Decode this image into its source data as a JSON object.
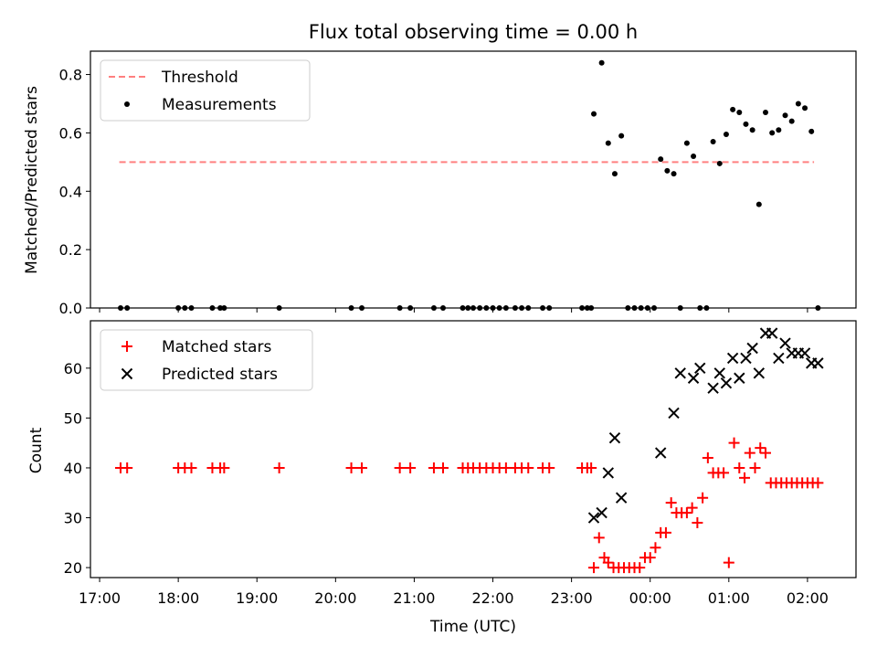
{
  "chart_data": [
    {
      "type": "scatter",
      "title": "Flux total observing time = 0.00 h",
      "xlabel": "",
      "ylabel": "Matched/Predicted stars",
      "xlim": [
        "16:53",
        "02:37"
      ],
      "ylim": [
        0,
        0.88
      ],
      "yticks": [
        "0.0",
        "0.2",
        "0.4",
        "0.6",
        "0.8"
      ],
      "grid": false,
      "legend_position": "top-left",
      "series": [
        {
          "name": "Threshold",
          "style": "dashed-line",
          "color": "#ff8080",
          "x": [
            "17:15",
            "02:05"
          ],
          "y": [
            0.5,
            0.5
          ]
        },
        {
          "name": "Measurements",
          "style": "dot",
          "color": "#000000",
          "x": [
            "17:16",
            "17:21",
            "18:00",
            "18:05",
            "18:10",
            "18:26",
            "18:32",
            "18:35",
            "19:17",
            "20:12",
            "20:20",
            "20:49",
            "20:57",
            "21:15",
            "21:22",
            "21:37",
            "21:41",
            "21:45",
            "21:50",
            "21:55",
            "22:00",
            "22:05",
            "22:10",
            "22:17",
            "22:22",
            "22:27",
            "22:38",
            "22:43",
            "23:08",
            "23:12",
            "23:15",
            "23:17",
            "23:23",
            "23:28",
            "23:33",
            "23:38",
            "23:43",
            "23:48",
            "23:53",
            "23:58",
            "00:03",
            "00:08",
            "00:13",
            "00:18",
            "00:23",
            "00:28",
            "00:33",
            "00:38",
            "00:43",
            "00:48",
            "00:53",
            "00:58",
            "01:03",
            "01:08",
            "01:13",
            "01:18",
            "01:23",
            "01:28",
            "01:33",
            "01:38",
            "01:43",
            "01:48",
            "01:53",
            "01:58",
            "02:03",
            "02:08"
          ],
          "y": [
            0,
            0,
            0,
            0,
            0,
            0,
            0,
            0,
            0,
            0,
            0,
            0,
            0,
            0,
            0,
            0,
            0,
            0,
            0,
            0,
            0,
            0,
            0,
            0,
            0,
            0,
            0,
            0,
            0,
            0,
            0,
            0.665,
            0.84,
            0.565,
            0.46,
            0.59,
            0,
            0,
            0,
            0,
            0,
            0.51,
            0.47,
            0.46,
            0,
            0.565,
            0.52,
            0,
            0,
            0.57,
            0.495,
            0.595,
            0.68,
            0.67,
            0.63,
            0.61,
            0.355,
            0.67,
            0.6,
            0.61,
            0.66,
            0.64,
            0.7,
            0.685,
            0.605,
            0
          ]
        }
      ]
    },
    {
      "type": "scatter",
      "title": "",
      "xlabel": "Time (UTC)",
      "ylabel": "Count",
      "xlim": [
        "16:53",
        "02:37"
      ],
      "ylim": [
        18,
        69.5
      ],
      "yticks": [
        "20",
        "30",
        "40",
        "50",
        "60"
      ],
      "xticks": [
        "17:00",
        "18:00",
        "19:00",
        "20:00",
        "21:00",
        "22:00",
        "23:00",
        "00:00",
        "01:00",
        "02:00"
      ],
      "grid": false,
      "legend_position": "top-left",
      "series": [
        {
          "name": "Matched stars",
          "style": "plus",
          "color": "#ff0000",
          "x": [
            "17:16",
            "17:21",
            "18:00",
            "18:05",
            "18:10",
            "18:26",
            "18:32",
            "18:35",
            "19:17",
            "20:12",
            "20:20",
            "20:49",
            "20:57",
            "21:15",
            "21:22",
            "21:37",
            "21:41",
            "21:45",
            "21:50",
            "21:55",
            "22:00",
            "22:05",
            "22:10",
            "22:17",
            "22:22",
            "22:27",
            "22:38",
            "22:43",
            "23:08",
            "23:12",
            "23:15",
            "23:17",
            "23:21",
            "23:25",
            "23:28",
            "23:32",
            "23:36",
            "23:40",
            "23:44",
            "23:48",
            "23:52",
            "23:56",
            "00:00",
            "00:04",
            "00:08",
            "00:12",
            "00:16",
            "00:20",
            "00:24",
            "00:28",
            "00:32",
            "00:36",
            "00:40",
            "00:44",
            "00:48",
            "00:52",
            "00:56",
            "01:00",
            "01:04",
            "01:08",
            "01:12",
            "01:16",
            "01:20",
            "01:24",
            "01:28",
            "01:32",
            "01:36",
            "01:40",
            "01:44",
            "01:48",
            "01:52",
            "01:56",
            "02:00",
            "02:04",
            "02:08"
          ],
          "y": [
            40,
            40,
            40,
            40,
            40,
            40,
            40,
            40,
            40,
            40,
            40,
            40,
            40,
            40,
            40,
            40,
            40,
            40,
            40,
            40,
            40,
            40,
            40,
            40,
            40,
            40,
            40,
            40,
            40,
            40,
            40,
            20,
            26,
            22,
            21,
            20,
            20,
            20,
            20,
            20,
            20,
            22,
            22,
            24,
            27,
            27,
            33,
            31,
            31,
            31,
            32,
            29,
            34,
            42,
            39,
            39,
            39,
            21,
            45,
            40,
            38,
            43,
            40,
            44,
            43,
            37,
            37,
            37,
            37,
            37,
            37,
            37,
            37,
            37,
            37
          ]
        },
        {
          "name": "Predicted stars",
          "style": "x",
          "color": "#000000",
          "x": [
            "23:17",
            "23:23",
            "23:28",
            "23:33",
            "23:38",
            "00:08",
            "00:18",
            "00:23",
            "00:33",
            "00:38",
            "00:48",
            "00:53",
            "00:58",
            "01:03",
            "01:08",
            "01:13",
            "01:18",
            "01:23",
            "01:28",
            "01:33",
            "01:38",
            "01:43",
            "01:48",
            "01:53",
            "01:58",
            "02:03",
            "02:08"
          ],
          "y": [
            30,
            31,
            39,
            46,
            34,
            43,
            51,
            59,
            58,
            60,
            56,
            59,
            57,
            62,
            58,
            62,
            64,
            59,
            67,
            67,
            62,
            65,
            63,
            63,
            63,
            61,
            61
          ]
        }
      ]
    }
  ]
}
